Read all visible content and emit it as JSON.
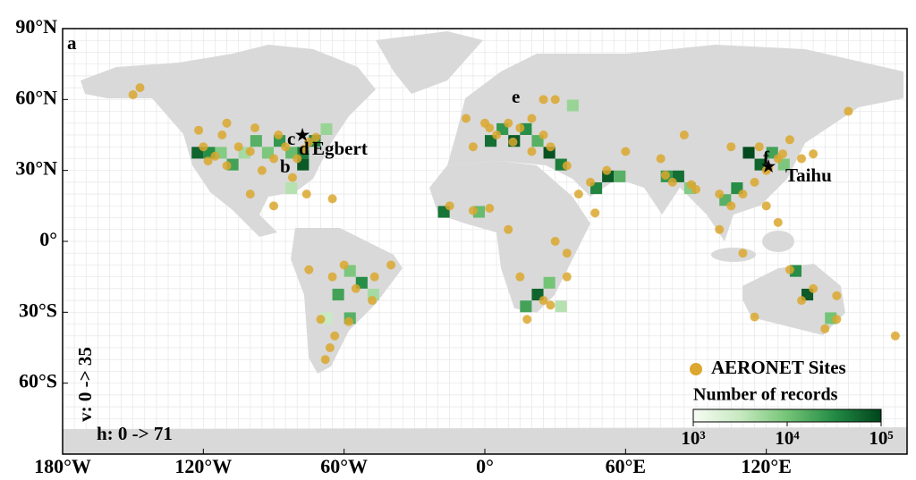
{
  "map": {
    "xlim": [
      -180,
      180
    ],
    "ylim": [
      -90,
      90
    ],
    "xticks": [
      {
        "value": -180,
        "label": "180°W"
      },
      {
        "value": -120,
        "label": "120°W"
      },
      {
        "value": -60,
        "label": "60°W"
      },
      {
        "value": 0,
        "label": "0°"
      },
      {
        "value": 60,
        "label": "60°E"
      },
      {
        "value": 120,
        "label": "120°E"
      }
    ],
    "yticks": [
      {
        "value": 90,
        "label": "90°N"
      },
      {
        "value": 60,
        "label": "60°N"
      },
      {
        "value": 30,
        "label": "30°N"
      },
      {
        "value": 0,
        "label": "0°"
      },
      {
        "value": -30,
        "label": "30°S"
      },
      {
        "value": -60,
        "label": "60°S"
      }
    ],
    "panel_label": "a",
    "annotations": {
      "b": "b",
      "c": "c",
      "d": "d",
      "egbert": "Egbert",
      "e": "e",
      "f": "f",
      "taihu": "Taihu"
    },
    "grid_labels": {
      "v": "v: 0 -> 35",
      "h": "h: 0 -> 71"
    },
    "sites": {
      "name": "AERONET Sites",
      "color": "#dba72e",
      "points": [
        [
          -120,
          40
        ],
        [
          -118,
          34
        ],
        [
          -115,
          36
        ],
        [
          -110,
          32
        ],
        [
          -105,
          40
        ],
        [
          -100,
          38
        ],
        [
          -95,
          30
        ],
        [
          -90,
          35
        ],
        [
          -85,
          40
        ],
        [
          -80,
          35
        ],
        [
          -77,
          39
        ],
        [
          -75,
          42
        ],
        [
          -72,
          44
        ],
        [
          -122,
          47
        ],
        [
          -112,
          45
        ],
        [
          -98,
          48
        ],
        [
          -88,
          45
        ],
        [
          -82,
          27
        ],
        [
          -150,
          62
        ],
        [
          -147,
          65
        ],
        [
          -110,
          50
        ],
        [
          -76,
          20
        ],
        [
          -100,
          20
        ],
        [
          -90,
          15
        ],
        [
          -65,
          18
        ],
        [
          -58,
          -34
        ],
        [
          -60,
          -10
        ],
        [
          -65,
          -15
        ],
        [
          -55,
          -20
        ],
        [
          -47,
          -15
        ],
        [
          -48,
          -25
        ],
        [
          -70,
          -33
        ],
        [
          -64,
          -40
        ],
        [
          -66,
          -45
        ],
        [
          -40,
          -10
        ],
        [
          -75,
          -12
        ],
        [
          -68,
          -50
        ],
        [
          0,
          50
        ],
        [
          5,
          45
        ],
        [
          10,
          50
        ],
        [
          15,
          48
        ],
        [
          20,
          52
        ],
        [
          25,
          45
        ],
        [
          -5,
          40
        ],
        [
          2,
          48
        ],
        [
          12,
          42
        ],
        [
          28,
          40
        ],
        [
          30,
          60
        ],
        [
          25,
          60
        ],
        [
          -8,
          52
        ],
        [
          20,
          38
        ],
        [
          35,
          32
        ],
        [
          -15,
          15
        ],
        [
          -5,
          13
        ],
        [
          2,
          14
        ],
        [
          10,
          5
        ],
        [
          30,
          0
        ],
        [
          35,
          -5
        ],
        [
          25,
          -25
        ],
        [
          28,
          -27
        ],
        [
          18,
          -33
        ],
        [
          15,
          -15
        ],
        [
          35,
          -15
        ],
        [
          45,
          25
        ],
        [
          40,
          20
        ],
        [
          47,
          12
        ],
        [
          75,
          35
        ],
        [
          77,
          28
        ],
        [
          80,
          25
        ],
        [
          88,
          24
        ],
        [
          90,
          22
        ],
        [
          100,
          20
        ],
        [
          105,
          15
        ],
        [
          110,
          20
        ],
        [
          115,
          25
        ],
        [
          117,
          40
        ],
        [
          120,
          30
        ],
        [
          121,
          31
        ],
        [
          125,
          35
        ],
        [
          127,
          37
        ],
        [
          135,
          35
        ],
        [
          140,
          37
        ],
        [
          105,
          40
        ],
        [
          85,
          45
        ],
        [
          60,
          38
        ],
        [
          52,
          30
        ],
        [
          100,
          5
        ],
        [
          110,
          -5
        ],
        [
          120,
          15
        ],
        [
          125,
          8
        ],
        [
          130,
          43
        ],
        [
          155,
          55
        ],
        [
          175,
          -40
        ],
        [
          115,
          -32
        ],
        [
          130,
          -12
        ],
        [
          135,
          -25
        ],
        [
          150,
          -33
        ],
        [
          145,
          -37
        ],
        [
          140,
          -20
        ],
        [
          150,
          -23
        ]
      ]
    },
    "cells": [
      {
        "lon": -125,
        "lat": 35,
        "records": 60000
      },
      {
        "lon": -120,
        "lat": 35,
        "records": 30000
      },
      {
        "lon": -115,
        "lat": 35,
        "records": 8000
      },
      {
        "lon": -110,
        "lat": 30,
        "records": 20000
      },
      {
        "lon": -105,
        "lat": 35,
        "records": 5000
      },
      {
        "lon": -100,
        "lat": 40,
        "records": 15000
      },
      {
        "lon": -95,
        "lat": 35,
        "records": 9000
      },
      {
        "lon": -90,
        "lat": 40,
        "records": 25000
      },
      {
        "lon": -85,
        "lat": 35,
        "records": 12000
      },
      {
        "lon": -80,
        "lat": 35,
        "records": 40000
      },
      {
        "lon": -80,
        "lat": 30,
        "records": 70000
      },
      {
        "lon": -75,
        "lat": 40,
        "records": 35000
      },
      {
        "lon": -70,
        "lat": 45,
        "records": 6000
      },
      {
        "lon": -85,
        "lat": 20,
        "records": 4000
      },
      {
        "lon": -65,
        "lat": -25,
        "records": 20000
      },
      {
        "lon": -60,
        "lat": -15,
        "records": 9000
      },
      {
        "lon": -55,
        "lat": -20,
        "records": 30000
      },
      {
        "lon": -50,
        "lat": -25,
        "records": 5000
      },
      {
        "lon": -70,
        "lat": -35,
        "records": 3000
      },
      {
        "lon": -60,
        "lat": -35,
        "records": 15000
      },
      {
        "lon": -20,
        "lat": 10,
        "records": 45000
      },
      {
        "lon": -5,
        "lat": 10,
        "records": 12000
      },
      {
        "lon": 0,
        "lat": 40,
        "records": 50000
      },
      {
        "lon": 5,
        "lat": 45,
        "records": 25000
      },
      {
        "lon": 10,
        "lat": 40,
        "records": 70000
      },
      {
        "lon": 15,
        "lat": 45,
        "records": 30000
      },
      {
        "lon": 20,
        "lat": 40,
        "records": 15000
      },
      {
        "lon": 25,
        "lat": 35,
        "records": 80000
      },
      {
        "lon": 30,
        "lat": 30,
        "records": 40000
      },
      {
        "lon": 35,
        "lat": 55,
        "records": 6000
      },
      {
        "lon": 15,
        "lat": -30,
        "records": 20000
      },
      {
        "lon": 20,
        "lat": -25,
        "records": 60000
      },
      {
        "lon": 25,
        "lat": -20,
        "records": 10000
      },
      {
        "lon": 30,
        "lat": -30,
        "records": 4000
      },
      {
        "lon": 45,
        "lat": 20,
        "records": 35000
      },
      {
        "lon": 50,
        "lat": 25,
        "records": 70000
      },
      {
        "lon": 55,
        "lat": 25,
        "records": 15000
      },
      {
        "lon": 75,
        "lat": 25,
        "records": 25000
      },
      {
        "lon": 80,
        "lat": 25,
        "records": 50000
      },
      {
        "lon": 85,
        "lat": 20,
        "records": 8000
      },
      {
        "lon": 100,
        "lat": 15,
        "records": 15000
      },
      {
        "lon": 105,
        "lat": 20,
        "records": 30000
      },
      {
        "lon": 110,
        "lat": 35,
        "records": 90000
      },
      {
        "lon": 115,
        "lat": 30,
        "records": 60000
      },
      {
        "lon": 120,
        "lat": 35,
        "records": 20000
      },
      {
        "lon": 125,
        "lat": 30,
        "records": 9000
      },
      {
        "lon": 130,
        "lat": -15,
        "records": 30000
      },
      {
        "lon": 135,
        "lat": -25,
        "records": 70000
      },
      {
        "lon": 145,
        "lat": -35,
        "records": 10000
      }
    ],
    "colorbar": {
      "title": "Number of records",
      "colormap": [
        "#f7fcf5",
        "#c7e9c0",
        "#74c476",
        "#238b45",
        "#00441b"
      ],
      "ticks": [
        {
          "value": 1000,
          "label": "10³"
        },
        {
          "value": 10000,
          "label": "10⁴"
        },
        {
          "value": 100000,
          "label": "10⁵"
        }
      ]
    }
  }
}
